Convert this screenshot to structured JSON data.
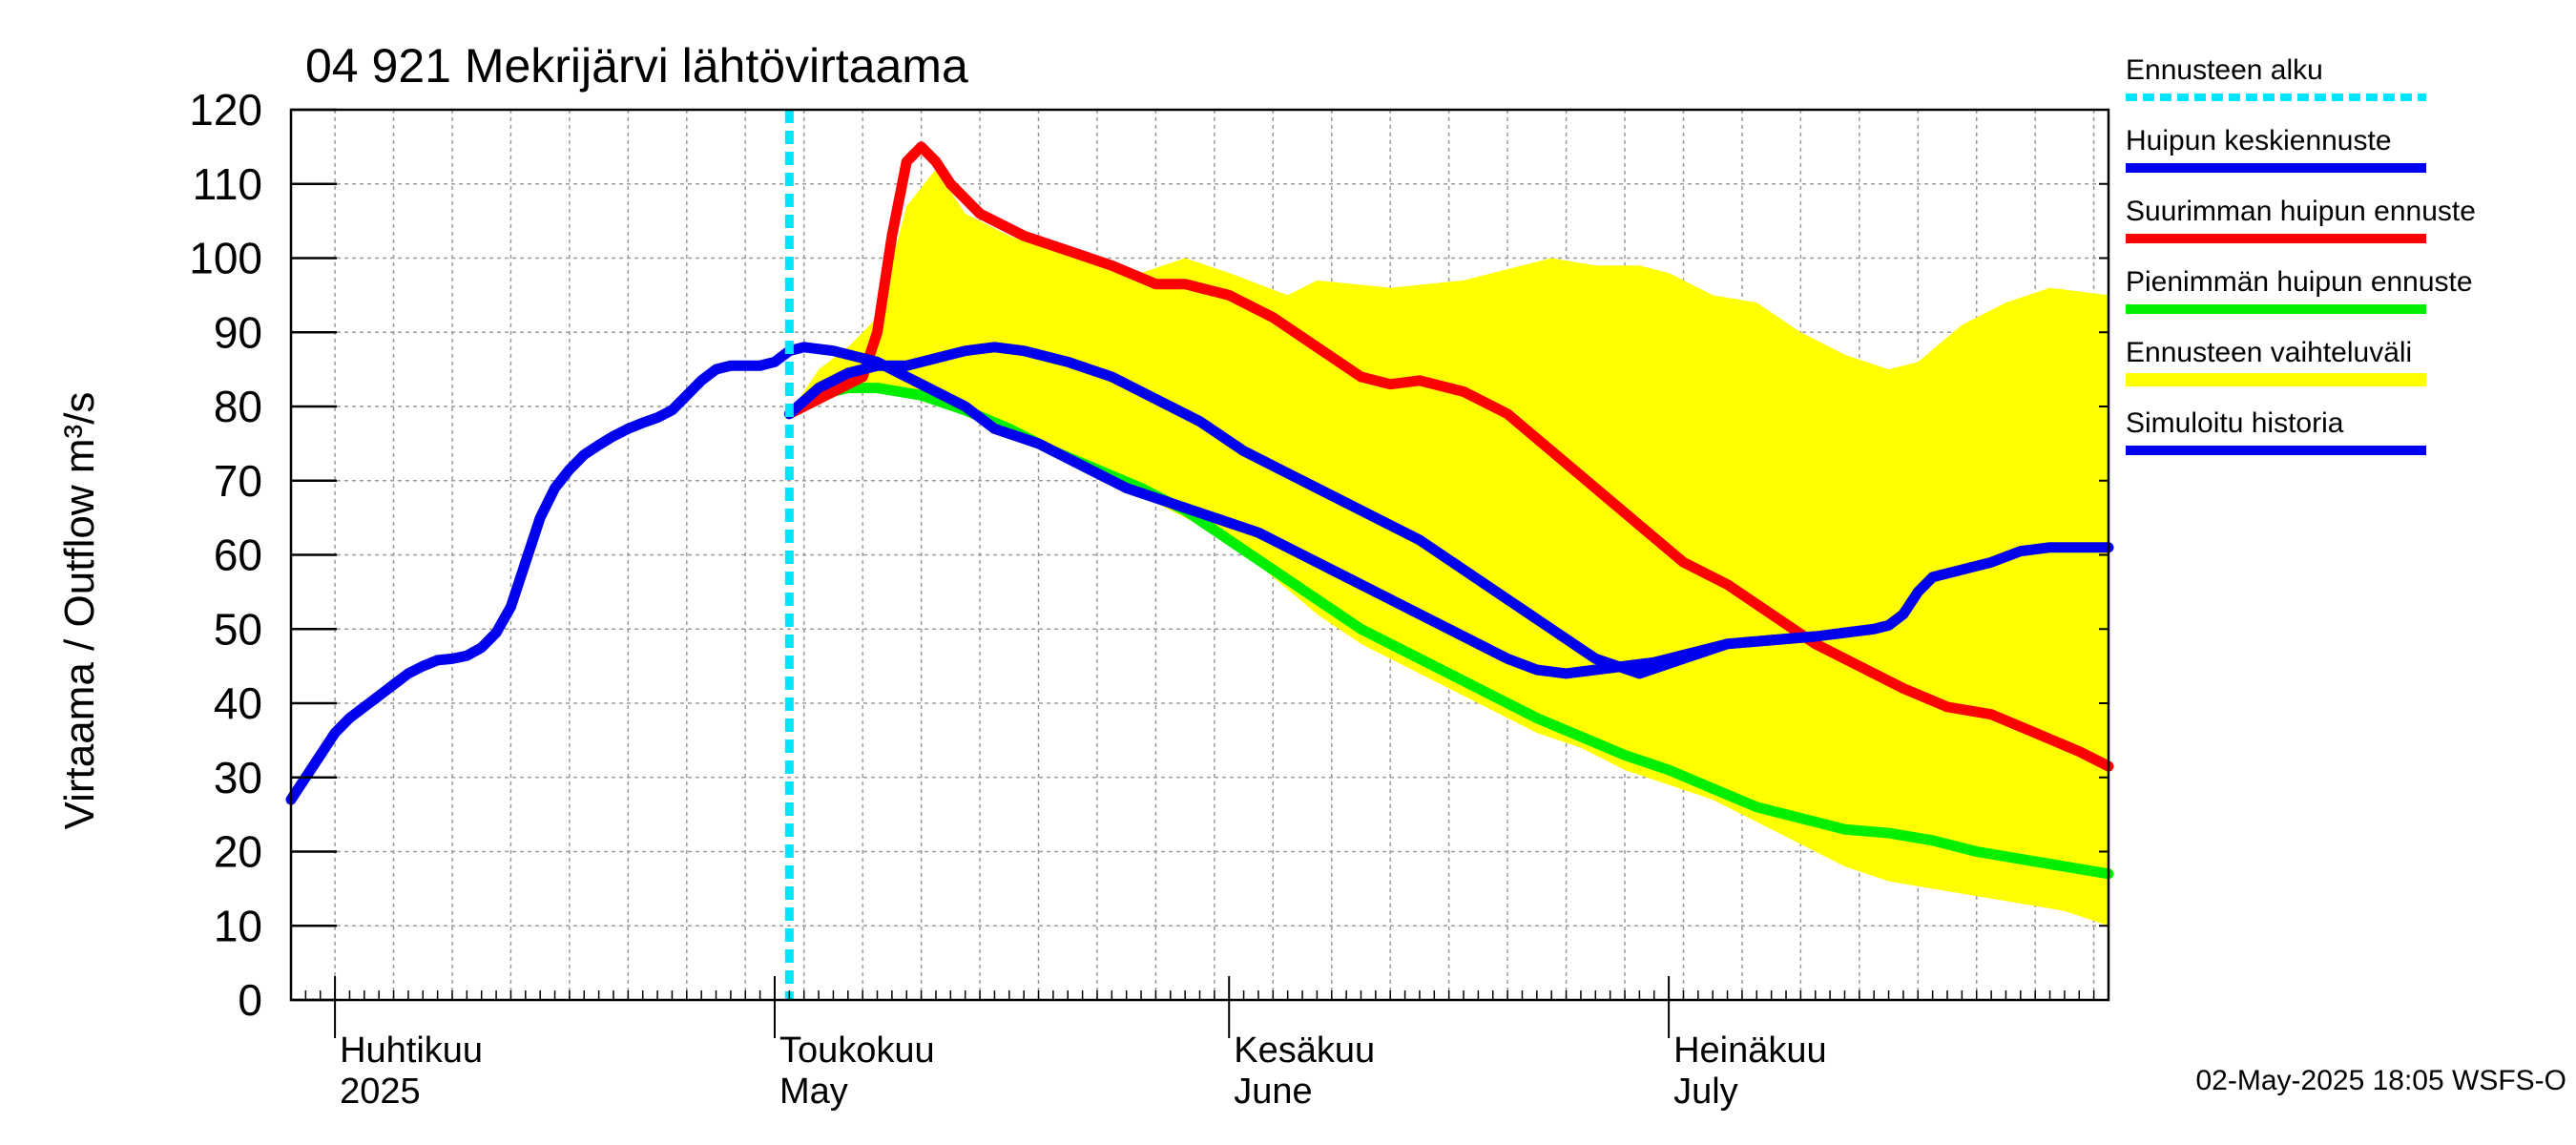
{
  "chart_data": {
    "type": "line",
    "title": "04 921 Mekrijärvi lähtövirtaama",
    "ylabel": "Virtaama / Outflow    m³/s",
    "ylim": [
      0,
      120
    ],
    "yticks": [
      0,
      10,
      20,
      30,
      40,
      50,
      60,
      70,
      80,
      90,
      100,
      110,
      120
    ],
    "xlim": [
      "2025-03-29",
      "2025-07-31"
    ],
    "grid": true,
    "month_labels": [
      {
        "date": "2025-04-01",
        "line1": "Huhtikuu",
        "line2": "2025"
      },
      {
        "date": "2025-05-01",
        "line1": "Toukokuu",
        "line2": "May"
      },
      {
        "date": "2025-06-01",
        "line1": "Kesäkuu",
        "line2": "June"
      },
      {
        "date": "2025-07-01",
        "line1": "Heinäkuu",
        "line2": "July"
      }
    ],
    "forecast_start": "2025-05-02",
    "timestamp": "02-May-2025 18:05 WSFS-O",
    "legend": {
      "placement": "right",
      "entries": [
        {
          "key": "forecast_start",
          "label": "Ennusteen alku",
          "color": "#00e5ff",
          "style": "dashed"
        },
        {
          "key": "median",
          "label": "Huipun keskiennuste",
          "color": "#0000ee",
          "style": "solid"
        },
        {
          "key": "max",
          "label": "Suurimman huipun ennuste",
          "color": "#ff0000",
          "style": "solid"
        },
        {
          "key": "min",
          "label": "Pienimmän huipun ennuste",
          "color": "#00ee00",
          "style": "solid"
        },
        {
          "key": "range",
          "label": "Ennusteen vaihteluväli",
          "color": "#ffff00",
          "style": "band"
        },
        {
          "key": "history",
          "label": "Simuloitu historia",
          "color": "#0000ee",
          "style": "solid"
        }
      ]
    },
    "series": [
      {
        "key": "range",
        "upper": [
          [
            "2025-05-02",
            79
          ],
          [
            "2025-05-04",
            85
          ],
          [
            "2025-05-06",
            88
          ],
          [
            "2025-05-08",
            92
          ],
          [
            "2025-05-10",
            107
          ],
          [
            "2025-05-12",
            112
          ],
          [
            "2025-05-14",
            106
          ],
          [
            "2025-05-17",
            103
          ],
          [
            "2025-05-20",
            101
          ],
          [
            "2025-05-23",
            100
          ],
          [
            "2025-05-26",
            98
          ],
          [
            "2025-05-29",
            100
          ],
          [
            "2025-06-01",
            98
          ],
          [
            "2025-06-05",
            95
          ],
          [
            "2025-06-07",
            97
          ],
          [
            "2025-06-12",
            96
          ],
          [
            "2025-06-17",
            97
          ],
          [
            "2025-06-21",
            99
          ],
          [
            "2025-06-23",
            100
          ],
          [
            "2025-06-26",
            99
          ],
          [
            "2025-06-29",
            99
          ],
          [
            "2025-07-01",
            98
          ],
          [
            "2025-07-04",
            95
          ],
          [
            "2025-07-07",
            94
          ],
          [
            "2025-07-10",
            90
          ],
          [
            "2025-07-13",
            87
          ],
          [
            "2025-07-16",
            85
          ],
          [
            "2025-07-18",
            86
          ],
          [
            "2025-07-21",
            91
          ],
          [
            "2025-07-24",
            94
          ],
          [
            "2025-07-27",
            96
          ],
          [
            "2025-07-31",
            95
          ]
        ],
        "lower": [
          [
            "2025-05-02",
            79
          ],
          [
            "2025-05-05",
            82
          ],
          [
            "2025-05-08",
            82
          ],
          [
            "2025-05-11",
            81
          ],
          [
            "2025-05-14",
            79
          ],
          [
            "2025-05-17",
            77
          ],
          [
            "2025-05-20",
            74
          ],
          [
            "2025-05-23",
            71
          ],
          [
            "2025-05-26",
            68
          ],
          [
            "2025-05-29",
            65
          ],
          [
            "2025-06-01",
            62
          ],
          [
            "2025-06-04",
            57
          ],
          [
            "2025-06-07",
            52
          ],
          [
            "2025-06-10",
            48
          ],
          [
            "2025-06-13",
            45
          ],
          [
            "2025-06-16",
            42
          ],
          [
            "2025-06-19",
            39
          ],
          [
            "2025-06-22",
            36
          ],
          [
            "2025-06-25",
            34
          ],
          [
            "2025-06-28",
            31
          ],
          [
            "2025-07-01",
            29
          ],
          [
            "2025-07-04",
            27
          ],
          [
            "2025-07-07",
            24
          ],
          [
            "2025-07-10",
            21
          ],
          [
            "2025-07-13",
            18
          ],
          [
            "2025-07-16",
            16
          ],
          [
            "2025-07-19",
            15
          ],
          [
            "2025-07-22",
            14
          ],
          [
            "2025-07-25",
            13
          ],
          [
            "2025-07-28",
            12
          ],
          [
            "2025-07-31",
            10
          ]
        ]
      },
      {
        "key": "history",
        "points": [
          [
            "2025-03-29",
            27
          ],
          [
            "2025-03-30",
            30
          ],
          [
            "2025-03-31",
            33
          ],
          [
            "2025-04-01",
            36
          ],
          [
            "2025-04-02",
            38
          ],
          [
            "2025-04-03",
            39.5
          ],
          [
            "2025-04-04",
            41
          ],
          [
            "2025-04-05",
            42.5
          ],
          [
            "2025-04-06",
            44
          ],
          [
            "2025-04-07",
            45
          ],
          [
            "2025-04-08",
            45.8
          ],
          [
            "2025-04-09",
            46
          ],
          [
            "2025-04-10",
            46.4
          ],
          [
            "2025-04-11",
            47.5
          ],
          [
            "2025-04-12",
            49.5
          ],
          [
            "2025-04-13",
            53
          ],
          [
            "2025-04-14",
            59
          ],
          [
            "2025-04-15",
            65
          ],
          [
            "2025-04-16",
            69
          ],
          [
            "2025-04-17",
            71.5
          ],
          [
            "2025-04-18",
            73.5
          ],
          [
            "2025-04-19",
            74.8
          ],
          [
            "2025-04-20",
            76
          ],
          [
            "2025-04-21",
            77
          ],
          [
            "2025-04-22",
            77.8
          ],
          [
            "2025-04-23",
            78.5
          ],
          [
            "2025-04-24",
            79.5
          ],
          [
            "2025-04-25",
            81.5
          ],
          [
            "2025-04-26",
            83.5
          ],
          [
            "2025-04-27",
            85
          ],
          [
            "2025-04-28",
            85.5
          ],
          [
            "2025-04-29",
            85.5
          ],
          [
            "2025-04-30",
            85.5
          ],
          [
            "2025-05-01",
            86
          ],
          [
            "2025-05-02",
            87.5
          ],
          [
            "2025-05-03",
            88
          ],
          [
            "2025-05-05",
            87.5
          ],
          [
            "2025-05-08",
            86
          ],
          [
            "2025-05-11",
            83
          ],
          [
            "2025-05-14",
            80
          ],
          [
            "2025-05-16",
            77
          ],
          [
            "2025-05-19",
            75
          ],
          [
            "2025-05-22",
            72
          ],
          [
            "2025-05-25",
            69
          ],
          [
            "2025-05-28",
            67
          ],
          [
            "2025-05-31",
            65
          ],
          [
            "2025-06-03",
            63
          ],
          [
            "2025-06-06",
            60
          ],
          [
            "2025-06-09",
            57
          ],
          [
            "2025-06-12",
            54
          ],
          [
            "2025-06-15",
            51
          ],
          [
            "2025-06-18",
            48
          ],
          [
            "2025-06-20",
            46
          ],
          [
            "2025-06-22",
            44.5
          ],
          [
            "2025-06-24",
            44
          ],
          [
            "2025-06-26",
            44.5
          ],
          [
            "2025-06-28",
            45
          ],
          [
            "2025-06-30",
            45.5
          ],
          [
            "2025-07-02",
            46.5
          ],
          [
            "2025-07-05",
            48
          ],
          [
            "2025-07-08",
            48.5
          ],
          [
            "2025-07-11",
            49
          ],
          [
            "2025-07-13",
            49.5
          ],
          [
            "2025-07-15",
            50
          ],
          [
            "2025-07-16",
            50.5
          ],
          [
            "2025-07-17",
            52
          ],
          [
            "2025-07-18",
            55
          ],
          [
            "2025-07-19",
            57
          ],
          [
            "2025-07-21",
            58
          ],
          [
            "2025-07-23",
            59
          ],
          [
            "2025-07-25",
            60.5
          ],
          [
            "2025-07-27",
            61
          ],
          [
            "2025-07-31",
            61
          ]
        ]
      },
      {
        "key": "max",
        "points": [
          [
            "2025-05-02",
            79
          ],
          [
            "2025-05-05",
            82
          ],
          [
            "2025-05-07",
            84
          ],
          [
            "2025-05-08",
            90
          ],
          [
            "2025-05-09",
            103
          ],
          [
            "2025-05-10",
            113
          ],
          [
            "2025-05-11",
            115
          ],
          [
            "2025-05-12",
            113
          ],
          [
            "2025-05-13",
            110
          ],
          [
            "2025-05-15",
            106
          ],
          [
            "2025-05-18",
            103
          ],
          [
            "2025-05-21",
            101
          ],
          [
            "2025-05-24",
            99
          ],
          [
            "2025-05-27",
            96.5
          ],
          [
            "2025-05-29",
            96.5
          ],
          [
            "2025-06-01",
            95
          ],
          [
            "2025-06-04",
            92
          ],
          [
            "2025-06-07",
            88
          ],
          [
            "2025-06-10",
            84
          ],
          [
            "2025-06-12",
            83
          ],
          [
            "2025-06-14",
            83.5
          ],
          [
            "2025-06-17",
            82
          ],
          [
            "2025-06-20",
            79
          ],
          [
            "2025-06-23",
            74
          ],
          [
            "2025-06-26",
            69
          ],
          [
            "2025-06-29",
            64
          ],
          [
            "2025-07-02",
            59
          ],
          [
            "2025-07-05",
            56
          ],
          [
            "2025-07-08",
            52
          ],
          [
            "2025-07-11",
            48
          ],
          [
            "2025-07-14",
            45
          ],
          [
            "2025-07-17",
            42
          ],
          [
            "2025-07-20",
            39.5
          ],
          [
            "2025-07-23",
            38.5
          ],
          [
            "2025-07-26",
            36
          ],
          [
            "2025-07-29",
            33.5
          ],
          [
            "2025-07-31",
            31.5
          ]
        ]
      },
      {
        "key": "median",
        "points": [
          [
            "2025-05-02",
            79
          ],
          [
            "2025-05-04",
            82.5
          ],
          [
            "2025-05-06",
            84.5
          ],
          [
            "2025-05-08",
            85.5
          ],
          [
            "2025-05-10",
            85.5
          ],
          [
            "2025-05-12",
            86.5
          ],
          [
            "2025-05-14",
            87.5
          ],
          [
            "2025-05-16",
            88
          ],
          [
            "2025-05-18",
            87.5
          ],
          [
            "2025-05-21",
            86
          ],
          [
            "2025-05-24",
            84
          ],
          [
            "2025-05-27",
            81
          ],
          [
            "2025-05-30",
            78
          ],
          [
            "2025-06-02",
            74
          ],
          [
            "2025-06-05",
            71
          ],
          [
            "2025-06-08",
            68
          ],
          [
            "2025-06-11",
            65
          ],
          [
            "2025-06-14",
            62
          ],
          [
            "2025-06-17",
            58
          ],
          [
            "2025-06-20",
            54
          ],
          [
            "2025-06-23",
            50
          ],
          [
            "2025-06-26",
            46
          ],
          [
            "2025-06-29",
            44
          ],
          [
            "2025-07-02",
            46
          ],
          [
            "2025-07-05",
            48
          ],
          [
            "2025-07-08",
            48.5
          ],
          [
            "2025-07-11",
            49
          ]
        ]
      },
      {
        "key": "min",
        "points": [
          [
            "2025-05-02",
            79
          ],
          [
            "2025-05-04",
            81.5
          ],
          [
            "2025-05-06",
            82.5
          ],
          [
            "2025-05-08",
            82.5
          ],
          [
            "2025-05-11",
            81.5
          ],
          [
            "2025-05-14",
            79.5
          ],
          [
            "2025-05-17",
            77
          ],
          [
            "2025-05-20",
            74
          ],
          [
            "2025-05-23",
            71.5
          ],
          [
            "2025-05-26",
            69
          ],
          [
            "2025-05-29",
            66
          ],
          [
            "2025-06-01",
            62
          ],
          [
            "2025-06-04",
            58
          ],
          [
            "2025-06-07",
            54
          ],
          [
            "2025-06-10",
            50
          ],
          [
            "2025-06-13",
            47
          ],
          [
            "2025-06-16",
            44
          ],
          [
            "2025-06-19",
            41
          ],
          [
            "2025-06-22",
            38
          ],
          [
            "2025-06-25",
            35.5
          ],
          [
            "2025-06-28",
            33
          ],
          [
            "2025-07-01",
            31
          ],
          [
            "2025-07-04",
            28.5
          ],
          [
            "2025-07-07",
            26
          ],
          [
            "2025-07-10",
            24.5
          ],
          [
            "2025-07-13",
            23
          ],
          [
            "2025-07-16",
            22.5
          ],
          [
            "2025-07-19",
            21.5
          ],
          [
            "2025-07-22",
            20
          ],
          [
            "2025-07-25",
            19
          ],
          [
            "2025-07-28",
            18
          ],
          [
            "2025-07-31",
            17
          ]
        ]
      }
    ]
  }
}
